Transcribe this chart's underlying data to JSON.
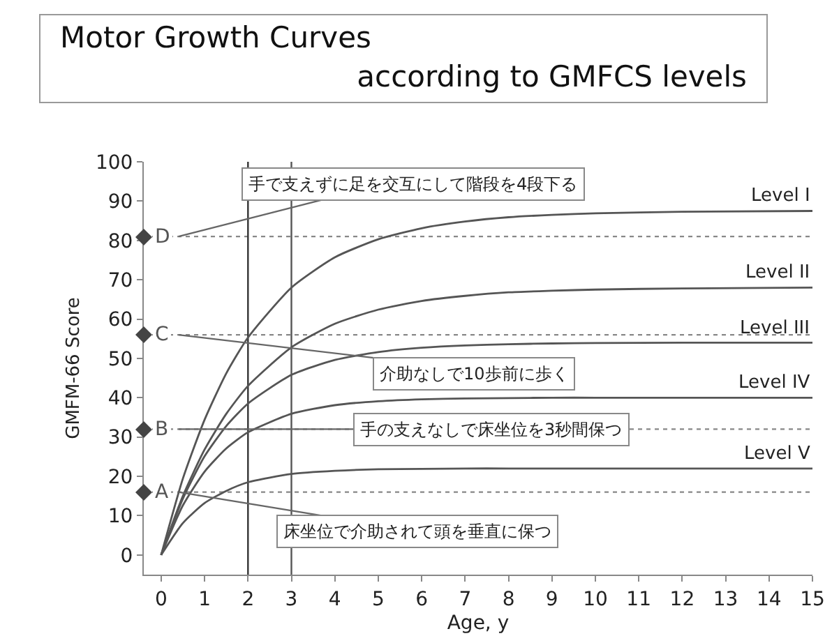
{
  "chart_data": {
    "type": "line",
    "title": "Motor Growth Curves",
    "subtitle": "according to GMFCS levels",
    "xlabel": "Age, y",
    "ylabel": "GMFM-66 Score",
    "x": [
      0,
      0.5,
      1,
      1.5,
      2,
      3,
      4,
      5,
      6,
      7,
      8,
      9,
      10,
      12,
      15
    ],
    "series": [
      {
        "name": "Level I",
        "color": "#555555",
        "values": [
          0,
          19.4,
          34.4,
          46.2,
          55.3,
          68,
          75.7,
          80.3,
          83.1,
          84.8,
          85.9,
          86.5,
          86.9,
          87.3,
          87.5
        ]
      },
      {
        "name": "Level II",
        "color": "#555555",
        "values": [
          0,
          15,
          26.8,
          35.9,
          43,
          52.8,
          58.8,
          62.4,
          64.6,
          65.9,
          66.8,
          67.2,
          67.5,
          67.8,
          68
        ]
      },
      {
        "name": "Level III",
        "color": "#555555",
        "values": [
          0,
          14.3,
          25.1,
          32.8,
          38.5,
          45.8,
          49.6,
          51.6,
          52.7,
          53.3,
          53.6,
          53.8,
          53.9,
          54,
          54
        ]
      },
      {
        "name": "Level IV",
        "color": "#555555",
        "values": [
          0,
          12.6,
          21.2,
          27.1,
          31.2,
          35.9,
          38.1,
          39.1,
          39.6,
          39.8,
          39.9,
          40,
          40,
          40,
          40
        ]
      },
      {
        "name": "Level V",
        "color": "#555555",
        "values": [
          0,
          8.1,
          13.2,
          16.3,
          18.5,
          20.6,
          21.4,
          21.8,
          21.9,
          22,
          22,
          22,
          22,
          22,
          22
        ]
      }
    ],
    "ref_lines": [
      {
        "axis": "y",
        "value": 16,
        "label": "A",
        "color": "#888888",
        "line_style": "dotted"
      },
      {
        "axis": "y",
        "value": 32,
        "label": "B",
        "color": "#888888",
        "line_style": "dotted"
      },
      {
        "axis": "y",
        "value": 56,
        "label": "C",
        "color": "#888888",
        "line_style": "dotted"
      },
      {
        "axis": "y",
        "value": 81,
        "label": "D",
        "color": "#888888",
        "line_style": "dotted"
      },
      {
        "axis": "x",
        "value": 2,
        "color": "#333333",
        "line_style": "solid"
      },
      {
        "axis": "x",
        "value": 3,
        "color": "#555555",
        "line_style": "solid"
      }
    ],
    "annotations": [
      {
        "text": "手で支えずに足を交互にして階段を4段下る",
        "y": 81
      },
      {
        "text": "介助なしで10歩前に歩く",
        "y": 56
      },
      {
        "text": "手の支えなしで床坐位を3秒間保つ",
        "y": 32
      },
      {
        "text": "床坐位で介助されて頭を垂直に保つ",
        "y": 16
      }
    ],
    "xlim": [
      -0.4,
      15
    ],
    "xticks": [
      0,
      1,
      2,
      3,
      4,
      5,
      6,
      7,
      8,
      9,
      10,
      11,
      12,
      13,
      14,
      15
    ],
    "ylim": [
      -5,
      100
    ],
    "yticks": [
      0,
      10,
      20,
      30,
      40,
      50,
      60,
      70,
      80,
      90,
      100
    ],
    "grid": false,
    "legend": false,
    "marker": "none",
    "line_style": "solid"
  }
}
